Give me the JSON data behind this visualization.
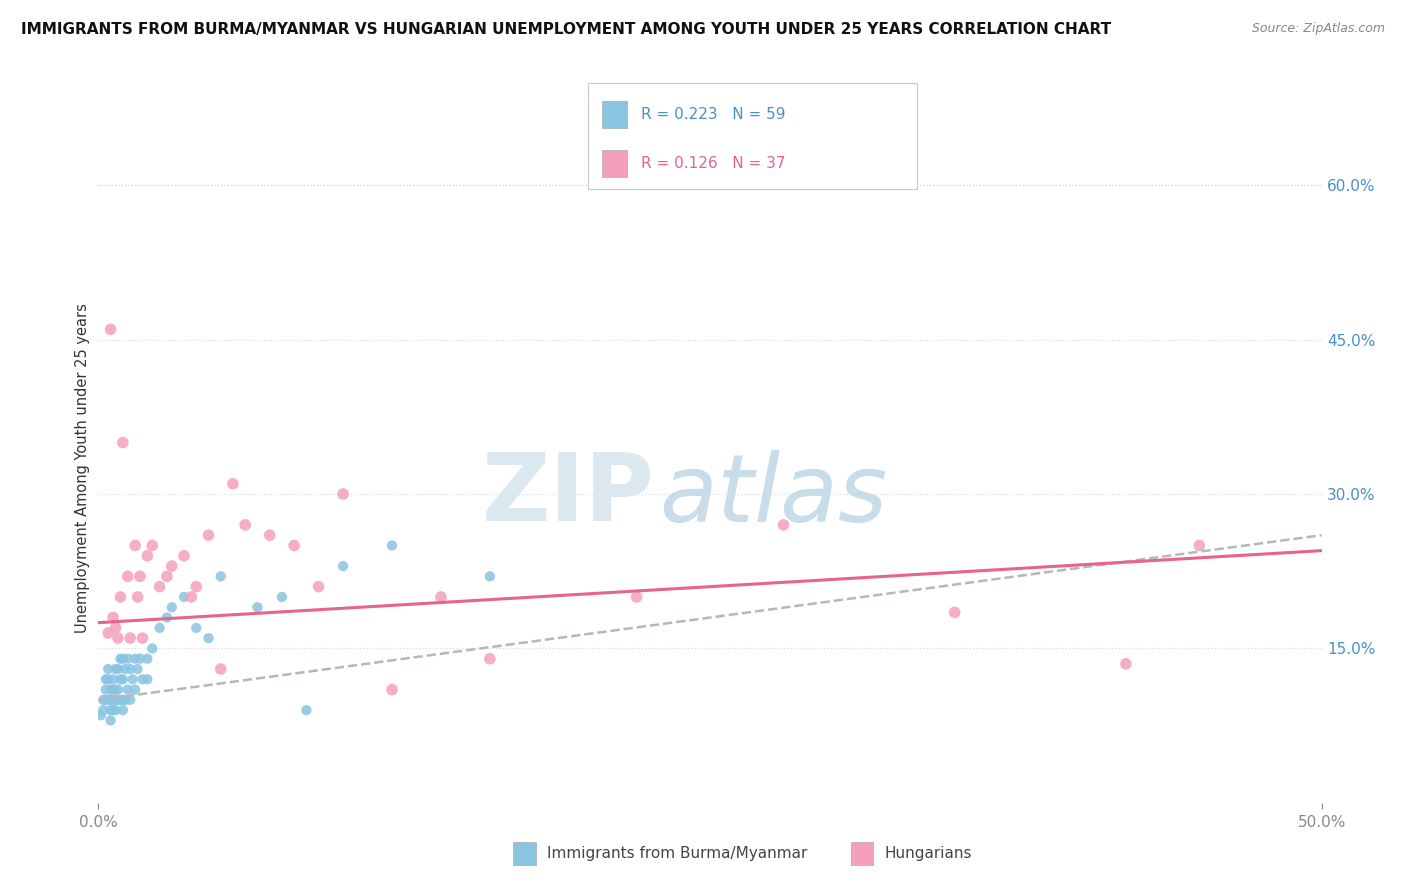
{
  "title": "IMMIGRANTS FROM BURMA/MYANMAR VS HUNGARIAN UNEMPLOYMENT AMONG YOUTH UNDER 25 YEARS CORRELATION CHART",
  "source": "Source: ZipAtlas.com",
  "ylabel": "Unemployment Among Youth under 25 years",
  "right_yticks": [
    "60.0%",
    "45.0%",
    "30.0%",
    "15.0%"
  ],
  "right_ytick_vals": [
    0.6,
    0.45,
    0.3,
    0.15
  ],
  "legend_r1": "R = 0.223",
  "legend_n1": "N = 59",
  "legend_r2": "R = 0.126",
  "legend_n2": "N = 37",
  "color_blue": "#89c4e1",
  "color_pink": "#f4a0bb",
  "color_blue_line": "#5b9ec9",
  "color_pink_line": "#e8648a",
  "color_blue_text": "#4a90c4",
  "color_pink_text": "#e8648a",
  "blue_scatter_x": [
    0.001,
    0.002,
    0.002,
    0.003,
    0.003,
    0.003,
    0.004,
    0.004,
    0.004,
    0.005,
    0.005,
    0.005,
    0.005,
    0.006,
    0.006,
    0.006,
    0.006,
    0.007,
    0.007,
    0.007,
    0.007,
    0.008,
    0.008,
    0.008,
    0.009,
    0.009,
    0.009,
    0.01,
    0.01,
    0.01,
    0.01,
    0.011,
    0.011,
    0.012,
    0.012,
    0.013,
    0.013,
    0.014,
    0.015,
    0.015,
    0.016,
    0.017,
    0.018,
    0.02,
    0.02,
    0.022,
    0.025,
    0.028,
    0.03,
    0.035,
    0.04,
    0.045,
    0.05,
    0.065,
    0.075,
    0.085,
    0.1,
    0.12,
    0.16
  ],
  "blue_scatter_y": [
    0.085,
    0.09,
    0.1,
    0.1,
    0.11,
    0.12,
    0.1,
    0.12,
    0.13,
    0.08,
    0.09,
    0.1,
    0.11,
    0.09,
    0.1,
    0.11,
    0.12,
    0.09,
    0.1,
    0.11,
    0.13,
    0.1,
    0.11,
    0.13,
    0.1,
    0.12,
    0.14,
    0.09,
    0.1,
    0.12,
    0.14,
    0.1,
    0.13,
    0.11,
    0.14,
    0.1,
    0.13,
    0.12,
    0.11,
    0.14,
    0.13,
    0.14,
    0.12,
    0.14,
    0.12,
    0.15,
    0.17,
    0.18,
    0.19,
    0.2,
    0.17,
    0.16,
    0.22,
    0.19,
    0.2,
    0.09,
    0.23,
    0.25,
    0.22
  ],
  "pink_scatter_x": [
    0.004,
    0.005,
    0.006,
    0.007,
    0.008,
    0.009,
    0.01,
    0.012,
    0.013,
    0.015,
    0.016,
    0.017,
    0.018,
    0.02,
    0.022,
    0.025,
    0.028,
    0.03,
    0.035,
    0.038,
    0.04,
    0.045,
    0.05,
    0.055,
    0.06,
    0.07,
    0.08,
    0.09,
    0.1,
    0.12,
    0.14,
    0.16,
    0.22,
    0.28,
    0.35,
    0.42,
    0.45
  ],
  "pink_scatter_y": [
    0.165,
    0.46,
    0.18,
    0.17,
    0.16,
    0.2,
    0.35,
    0.22,
    0.16,
    0.25,
    0.2,
    0.22,
    0.16,
    0.24,
    0.25,
    0.21,
    0.22,
    0.23,
    0.24,
    0.2,
    0.21,
    0.26,
    0.13,
    0.31,
    0.27,
    0.26,
    0.25,
    0.21,
    0.3,
    0.11,
    0.2,
    0.14,
    0.2,
    0.27,
    0.185,
    0.135,
    0.25
  ],
  "xlim": [
    0.0,
    0.5
  ],
  "ylim": [
    0.0,
    0.65
  ],
  "blue_line_x": [
    0.0,
    0.5
  ],
  "blue_line_y": [
    0.1,
    0.26
  ],
  "pink_line_x": [
    0.0,
    0.5
  ],
  "pink_line_y": [
    0.175,
    0.245
  ],
  "grid_color": "#dddddd",
  "background_color": "#ffffff",
  "watermark_zip_color": "#d8e8f0",
  "watermark_atlas_color": "#c8d8e8"
}
